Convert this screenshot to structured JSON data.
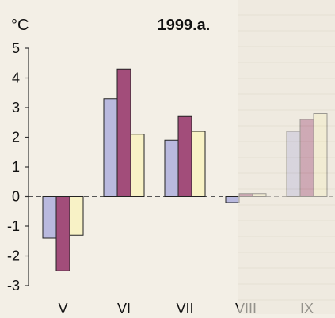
{
  "chart_data": {
    "type": "bar",
    "title": "1999.a.",
    "ylabel": "°C",
    "ylim": [
      -3,
      5
    ],
    "yticks": [
      5,
      4,
      3,
      2,
      1,
      0,
      -1,
      -2,
      -3
    ],
    "categories": [
      "V",
      "VI",
      "VII",
      "VIII",
      "IX"
    ],
    "series": [
      {
        "values": [
          -1.4,
          3.3,
          1.9,
          -0.2,
          2.2
        ]
      },
      {
        "values": [
          -2.5,
          4.3,
          2.7,
          0.1,
          2.6
        ]
      },
      {
        "values": [
          -1.3,
          2.1,
          2.2,
          0.1,
          2.8
        ]
      }
    ],
    "colors": [
      "#b9b9de",
      "#a24d7a",
      "#f8f2c6"
    ],
    "grid": false,
    "legend": "none"
  }
}
